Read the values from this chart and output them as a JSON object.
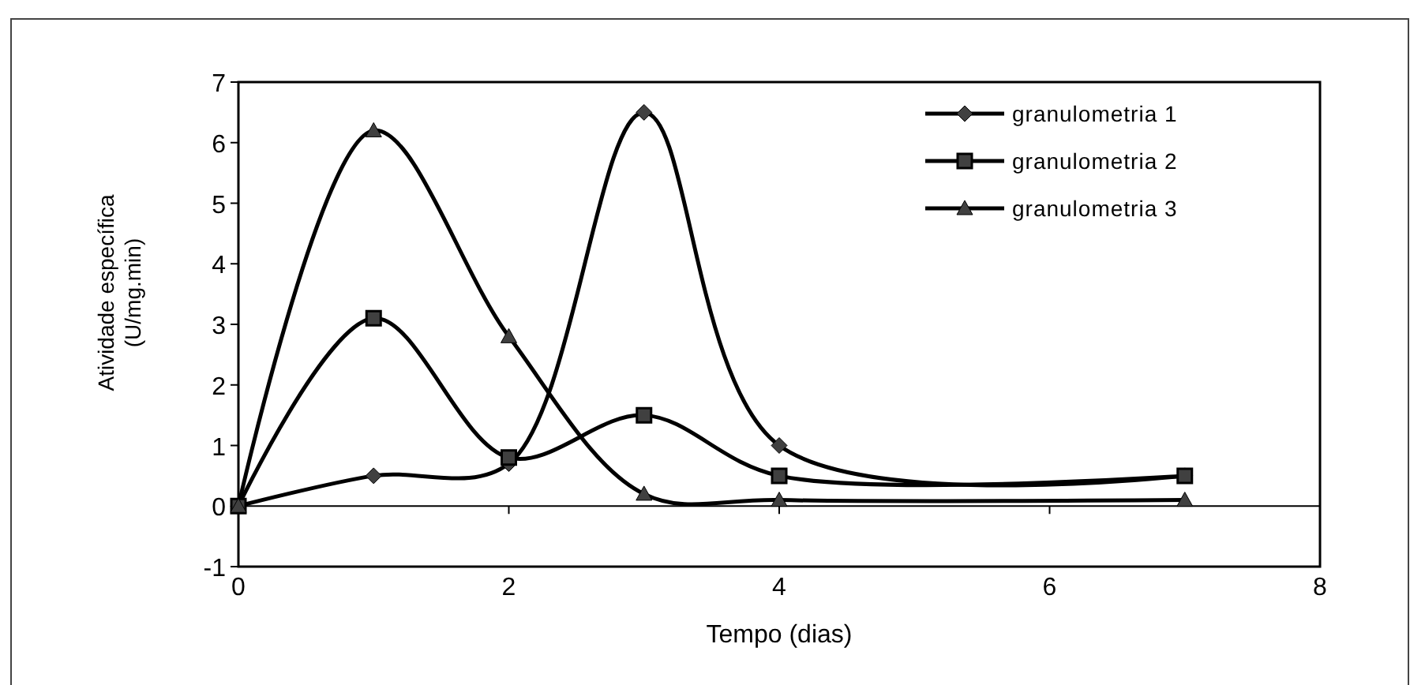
{
  "chart_data": {
    "type": "line",
    "xlabel": "Tempo (dias)",
    "ylabel": "Atividade específica\n(U/mg.min)",
    "x": [
      0,
      1,
      2,
      3,
      4,
      7
    ],
    "series": [
      {
        "name": "granulometria 1",
        "color": "#000000",
        "marker": "diamond",
        "values": [
          0,
          0.5,
          0.7,
          6.5,
          1.0,
          0.5
        ]
      },
      {
        "name": "granulometria 2",
        "color": "#000000",
        "marker": "square",
        "values": [
          0,
          3.1,
          0.8,
          1.5,
          0.5,
          0.5
        ]
      },
      {
        "name": "granulometria 3",
        "color": "#000000",
        "marker": "triangle",
        "values": [
          0,
          6.2,
          2.8,
          0.2,
          0.1,
          0.1
        ]
      }
    ],
    "xlim": [
      0,
      8
    ],
    "xticks": [
      0,
      2,
      4,
      6,
      8
    ],
    "ylim": [
      -1,
      7
    ],
    "yticks": [
      -1,
      0,
      1,
      2,
      3,
      4,
      5,
      6,
      7
    ],
    "legend": "top right",
    "line_style": "solid"
  }
}
